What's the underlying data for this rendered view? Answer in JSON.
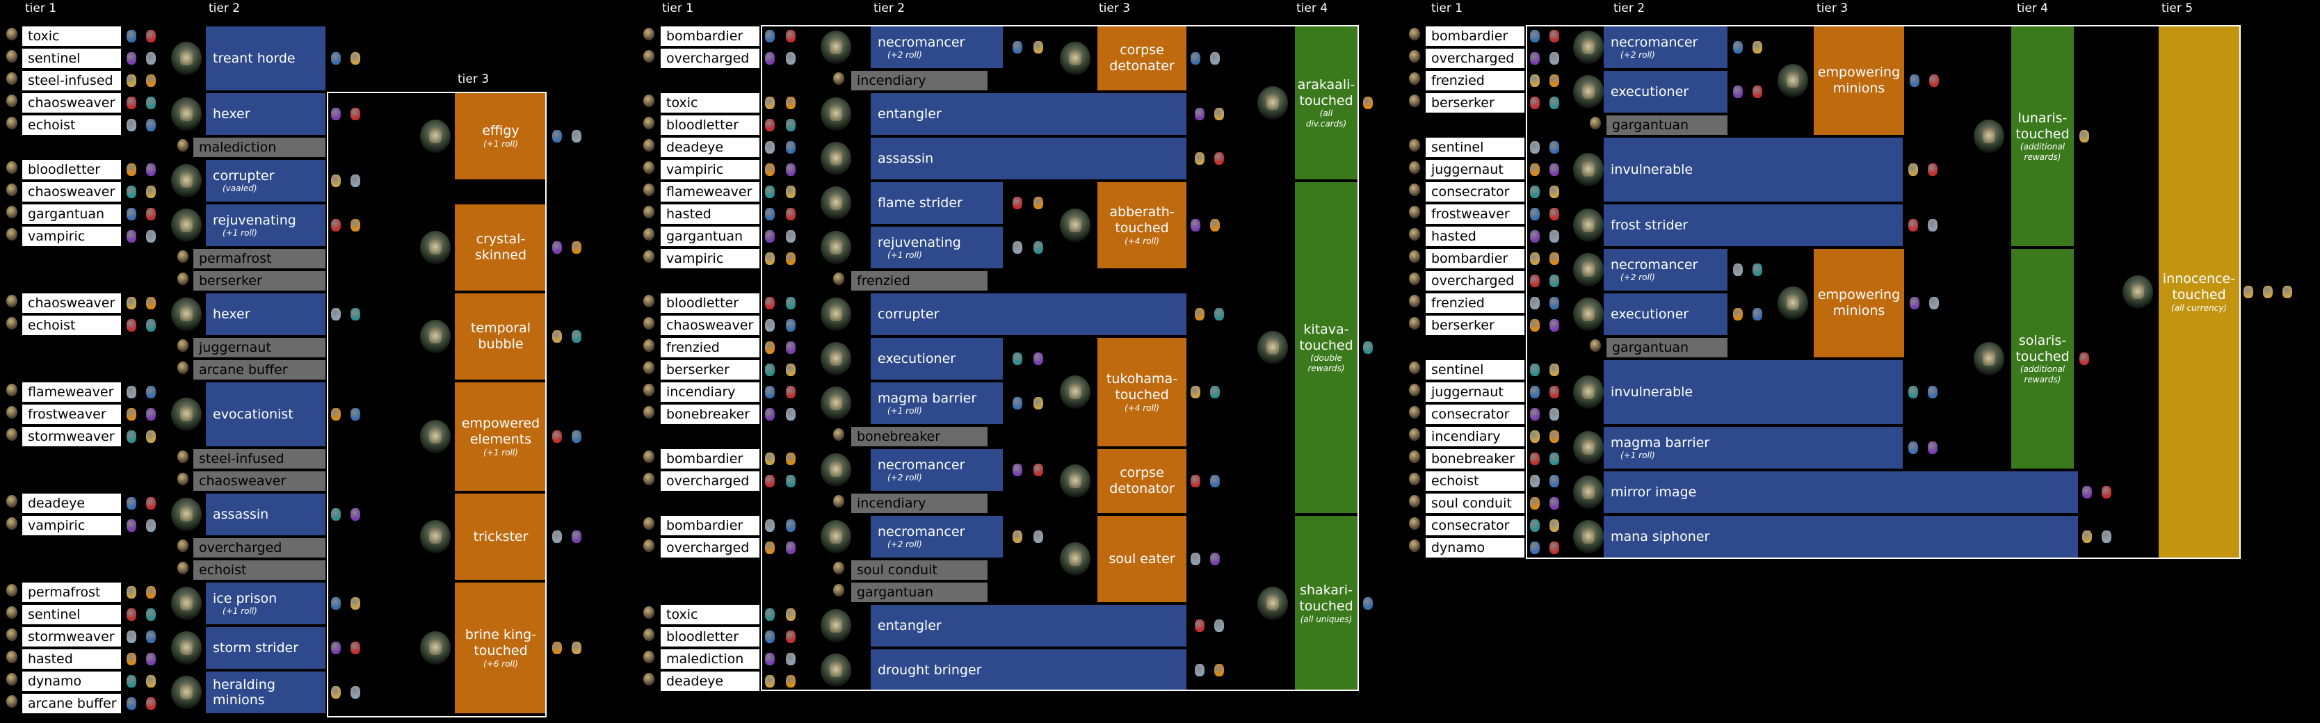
{
  "headers": {
    "p1_t1": "tier 1",
    "p1_t2": "tier 2",
    "p1_t3": "tier 3",
    "p2_t1": "tier 1",
    "p2_t2": "tier 2",
    "p2_t3": "tier 3",
    "p2_t4": "tier 4",
    "p3_t1": "tier 1",
    "p3_t2": "tier 2",
    "p3_t3": "tier 3",
    "p3_t4": "tier 4",
    "p3_t5": "tier 5"
  },
  "panel1": {
    "tier1": [
      "toxic",
      "sentinel",
      "steel-infused",
      "chaosweaver",
      "echoist",
      "bloodletter",
      "chaosweaver",
      "gargantuan",
      "vampiric",
      "chaosweaver",
      "echoist",
      "flameweaver",
      "frostweaver",
      "stormweaver",
      "deadeye",
      "vampiric",
      "permafrost",
      "sentinel",
      "stormweaver",
      "hasted",
      "dynamo",
      "arcane buffer"
    ],
    "tier2_extra": [
      "malediction",
      "permafrost",
      "berserker",
      "juggernaut",
      "arcane buffer",
      "steel-infused",
      "chaosweaver",
      "overcharged",
      "echoist"
    ],
    "tier2": [
      {
        "label": "treant horde",
        "sub": ""
      },
      {
        "label": "hexer",
        "sub": ""
      },
      {
        "label": "corrupter",
        "sub": "(vaaled)"
      },
      {
        "label": "rejuvenating",
        "sub": "(+1 roll)"
      },
      {
        "label": "hexer",
        "sub": ""
      },
      {
        "label": "evocationist",
        "sub": ""
      },
      {
        "label": "assassin",
        "sub": ""
      },
      {
        "label": "ice prison",
        "sub": "(+1 roll)"
      },
      {
        "label": "storm strider",
        "sub": ""
      },
      {
        "label": "heralding minions",
        "sub": ""
      }
    ],
    "tier3": [
      {
        "label": "effigy",
        "sub": "(+1 roll)"
      },
      {
        "label": "crystal-\nskinned",
        "sub": ""
      },
      {
        "label": "temporal\nbubble",
        "sub": ""
      },
      {
        "label": "empowered\nelements",
        "sub": "(+1 roll)"
      },
      {
        "label": "trickster",
        "sub": ""
      },
      {
        "label": "brine king-\ntouched",
        "sub": "(+6 roll)"
      }
    ]
  },
  "panel2": {
    "tier1": [
      "bombardier",
      "overcharged",
      "toxic",
      "bloodletter",
      "deadeye",
      "vampiric",
      "flameweaver",
      "hasted",
      "gargantuan",
      "vampiric",
      "bloodletter",
      "chaosweaver",
      "frenzied",
      "berserker",
      "incendiary",
      "bonebreaker",
      "bombardier",
      "overcharged",
      "bombardier",
      "overcharged",
      "toxic",
      "bloodletter",
      "malediction",
      "deadeye"
    ],
    "tier2_extra": [
      "incendiary",
      "frenzied",
      "bonebreaker",
      "incendiary",
      "soul conduit",
      "gargantuan"
    ],
    "tier2": [
      {
        "label": "necromancer",
        "sub": "(+2 roll)"
      },
      {
        "label": "entangler",
        "sub": ""
      },
      {
        "label": "assassin",
        "sub": ""
      },
      {
        "label": "flame strider",
        "sub": ""
      },
      {
        "label": "rejuvenating",
        "sub": "(+1 roll)"
      },
      {
        "label": "corrupter",
        "sub": ""
      },
      {
        "label": "executioner",
        "sub": ""
      },
      {
        "label": "magma barrier",
        "sub": "(+1 roll)"
      },
      {
        "label": "necromancer",
        "sub": "(+2 roll)"
      },
      {
        "label": "necromancer",
        "sub": "(+2 roll)"
      },
      {
        "label": "entangler",
        "sub": ""
      },
      {
        "label": "drought bringer",
        "sub": ""
      }
    ],
    "tier3": [
      {
        "label": "corpse\ndetonater",
        "sub": ""
      },
      {
        "label": "abberath-\ntouched",
        "sub": "(+4 roll)"
      },
      {
        "label": "tukohama-\ntouched",
        "sub": "(+4 roll)"
      },
      {
        "label": "corpse\ndetonator",
        "sub": ""
      },
      {
        "label": "soul eater",
        "sub": ""
      }
    ],
    "tier4": [
      {
        "label": "arakaali-\ntouched",
        "sub": "(all\ndiv.cards)"
      },
      {
        "label": "kitava-\ntouched",
        "sub": "(double\nrewards)"
      },
      {
        "label": "shakari-\ntouched",
        "sub": "(all uniques)"
      }
    ]
  },
  "panel3": {
    "tier1": [
      "bombardier",
      "overcharged",
      "frenzied",
      "berserker",
      "sentinel",
      "juggernaut",
      "consecrator",
      "frostweaver",
      "hasted",
      "bombardier",
      "overcharged",
      "frenzied",
      "berserker",
      "sentinel",
      "juggernaut",
      "consecrator",
      "incendiary",
      "bonebreaker",
      "echoist",
      "soul conduit",
      "consecrator",
      "dynamo"
    ],
    "tier2_extra": [
      "gargantuan",
      "gargantuan"
    ],
    "tier2": [
      {
        "label": "necromancer",
        "sub": "(+2 roll)"
      },
      {
        "label": "executioner",
        "sub": ""
      },
      {
        "label": "invulnerable",
        "sub": ""
      },
      {
        "label": "frost strider",
        "sub": ""
      },
      {
        "label": "necromancer",
        "sub": "(+2 roll)"
      },
      {
        "label": "executioner",
        "sub": ""
      },
      {
        "label": "invulnerable",
        "sub": ""
      },
      {
        "label": "magma barrier",
        "sub": "(+1 roll)"
      },
      {
        "label": "mirror image",
        "sub": ""
      },
      {
        "label": "mana siphoner",
        "sub": ""
      }
    ],
    "tier3": [
      {
        "label": "empowering\nminions",
        "sub": ""
      },
      {
        "label": "empowering\nminions",
        "sub": ""
      }
    ],
    "tier4": [
      {
        "label": "lunaris-\ntouched",
        "sub": "(additional\nrewards)"
      },
      {
        "label": "solaris-\ntouched",
        "sub": "(additional\nrewards)"
      }
    ],
    "tier5": [
      {
        "label": "innocence-\ntouched",
        "sub": "(all currency)"
      }
    ]
  },
  "colors": {
    "tier2": "#2e4a8c",
    "tier3": "#c06a10",
    "tier4": "#3a7a1c",
    "tier5": "#c29410",
    "tier1_label": "#ffffff",
    "extra_label": "#6b6b6b"
  }
}
